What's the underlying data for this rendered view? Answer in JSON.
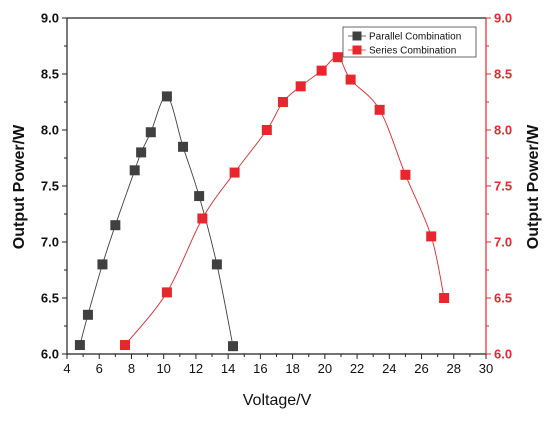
{
  "chart_data": {
    "type": "line",
    "xlabel": "Voltage/V",
    "ylabel": "Output Power/W",
    "ylabel_right": "Output Power/W",
    "xlim": [
      4,
      30
    ],
    "ylim": [
      6.0,
      9.0
    ],
    "ylim_right": [
      6.0,
      9.0
    ],
    "x_ticks": [
      "4",
      "6",
      "8",
      "10",
      "12",
      "14",
      "16",
      "18",
      "20",
      "22",
      "24",
      "26",
      "28",
      "30"
    ],
    "y_ticks": [
      "6.0",
      "6.5",
      "7.0",
      "7.5",
      "8.0",
      "8.5",
      "9.0"
    ],
    "y_ticks_right": [
      "6.0",
      "6.5",
      "7.0",
      "7.5",
      "8.0",
      "8.5",
      "9.0"
    ],
    "grid": false,
    "legend": "top-right",
    "series": [
      {
        "name": "Parallel Combination",
        "color": "#404040",
        "marker": "square",
        "x": [
          4.8,
          5.3,
          6.2,
          7.0,
          8.2,
          8.6,
          9.2,
          10.2,
          11.2,
          12.2,
          13.3,
          14.3
        ],
        "y": [
          6.08,
          6.35,
          6.8,
          7.15,
          7.64,
          7.8,
          7.98,
          8.3,
          7.85,
          7.41,
          6.8,
          6.07
        ]
      },
      {
        "name": "Series Combination",
        "color": "#e8262d",
        "marker": "square",
        "x": [
          7.6,
          10.2,
          12.4,
          14.4,
          16.4,
          17.4,
          18.5,
          19.8,
          20.8,
          21.6,
          23.4,
          25.0,
          26.6,
          27.4
        ],
        "y": [
          6.08,
          6.55,
          7.21,
          7.62,
          8.0,
          8.25,
          8.39,
          8.53,
          8.65,
          8.45,
          8.18,
          7.6,
          7.05,
          6.5
        ]
      }
    ]
  }
}
